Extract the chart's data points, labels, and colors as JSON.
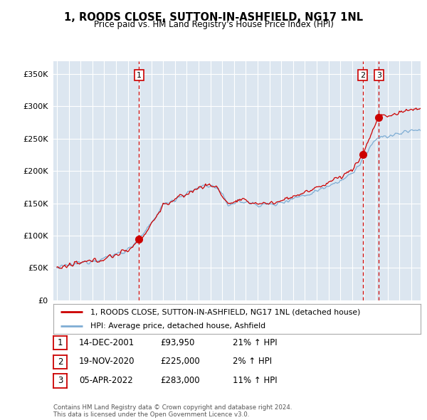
{
  "title": "1, ROODS CLOSE, SUTTON-IN-ASHFIELD, NG17 1NL",
  "subtitle": "Price paid vs. HM Land Registry's House Price Index (HPI)",
  "ylim": [
    0,
    370000
  ],
  "yticks": [
    0,
    50000,
    100000,
    150000,
    200000,
    250000,
    300000,
    350000
  ],
  "sale_dates_num": [
    2001.96,
    2020.89,
    2022.26
  ],
  "sale_prices": [
    93950,
    225000,
    283000
  ],
  "sale_labels": [
    "1",
    "2",
    "3"
  ],
  "legend_red": "1, ROODS CLOSE, SUTTON-IN-ASHFIELD, NG17 1NL (detached house)",
  "legend_blue": "HPI: Average price, detached house, Ashfield",
  "table_data": [
    [
      "1",
      "14-DEC-2001",
      "£93,950",
      "21% ↑ HPI"
    ],
    [
      "2",
      "19-NOV-2020",
      "£225,000",
      "2% ↑ HPI"
    ],
    [
      "3",
      "05-APR-2022",
      "£283,000",
      "11% ↑ HPI"
    ]
  ],
  "footer": "Contains HM Land Registry data © Crown copyright and database right 2024.\nThis data is licensed under the Open Government Licence v3.0.",
  "bg_color": "#dce6f0",
  "red_color": "#cc0000",
  "blue_color": "#7eadd4",
  "vline_color": "#cc0000",
  "box_color": "#cc0000"
}
